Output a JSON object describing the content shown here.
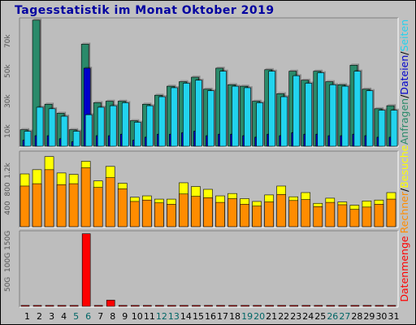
{
  "title": "Tagesstatistik im Monat Oktober 2019",
  "colors": {
    "frame_bg": "#c0c0c0",
    "panel_bg": "#bdbdbd",
    "anfragen": "#2a8a6a",
    "dateien": "#0000cc",
    "seiten": "#22d3ee",
    "besuche": "#ffff00",
    "rechner": "#ff8c00",
    "datenmenge": "#ff0000",
    "weekend_day": "#006666",
    "normal_day": "#000000"
  },
  "chart_data": [
    {
      "type": "bar",
      "panel": "top",
      "yticks": [
        "10k",
        "30k",
        "50k",
        "70k"
      ],
      "ytick_values": [
        10000,
        30000,
        50000,
        70000
      ],
      "ylim": [
        0,
        85000
      ],
      "series": [
        {
          "name": "Anfragen",
          "values": [
            11000,
            84000,
            28000,
            22000,
            11000,
            68000,
            29000,
            30000,
            30000,
            17000,
            28000,
            34000,
            40000,
            43000,
            46000,
            38000,
            52000,
            41000,
            40000,
            30000,
            51000,
            35000,
            50000,
            44000,
            50000,
            43000,
            41000,
            54000,
            38000,
            25000,
            27000
          ]
        },
        {
          "name": "Dateien",
          "values": [
            4000,
            7000,
            7000,
            5000,
            3000,
            52000,
            7000,
            7000,
            8000,
            4000,
            6000,
            8000,
            8000,
            9000,
            10000,
            7000,
            8000,
            8000,
            7000,
            6000,
            8000,
            7000,
            9000,
            8000,
            8000,
            7000,
            7000,
            8000,
            7000,
            6000,
            6000
          ]
        },
        {
          "name": "Seiten",
          "values": [
            10000,
            26000,
            25000,
            20000,
            10000,
            21000,
            26000,
            27000,
            29000,
            16000,
            27000,
            33000,
            39000,
            42000,
            44000,
            37000,
            50000,
            40000,
            39000,
            29000,
            50000,
            33000,
            47000,
            42000,
            49000,
            41000,
            40000,
            50000,
            37000,
            24000,
            24000
          ]
        }
      ]
    },
    {
      "type": "bar",
      "panel": "middle",
      "yticks": [
        "400",
        "800",
        "1.2k"
      ],
      "ytick_values": [
        400,
        800,
        1200
      ],
      "ylim": [
        0,
        1600
      ],
      "series": [
        {
          "name": "Besuche",
          "values": [
            1130,
            1220,
            1500,
            1150,
            1120,
            1400,
            980,
            1290,
            930,
            630,
            660,
            590,
            590,
            940,
            860,
            800,
            660,
            710,
            600,
            540,
            680,
            870,
            640,
            730,
            500,
            610,
            530,
            460,
            550,
            570,
            730
          ]
        },
        {
          "name": "Rechner",
          "values": [
            870,
            920,
            1220,
            900,
            920,
            1260,
            840,
            1050,
            810,
            540,
            570,
            510,
            480,
            700,
            650,
            620,
            520,
            600,
            480,
            440,
            530,
            690,
            560,
            580,
            430,
            520,
            470,
            370,
            420,
            480,
            590
          ]
        }
      ]
    },
    {
      "type": "bar",
      "panel": "bottom",
      "yticks": [
        "50G",
        "100G",
        "150G"
      ],
      "ytick_values": [
        50,
        100,
        150
      ],
      "ylim": [
        0,
        170
      ],
      "series": [
        {
          "name": "Datenmenge",
          "values": [
            2,
            2,
            2,
            2,
            2,
            165,
            2,
            14,
            2,
            2,
            2,
            2,
            2,
            2,
            2,
            2,
            2,
            2,
            2,
            2,
            2,
            2,
            2,
            2,
            2,
            2,
            2,
            2,
            2,
            2,
            2
          ]
        }
      ]
    }
  ],
  "days": [
    "1",
    "2",
    "3",
    "4",
    "5",
    "6",
    "7",
    "8",
    "9",
    "10",
    "11",
    "12",
    "13",
    "14",
    "15",
    "16",
    "17",
    "18",
    "19",
    "20",
    "21",
    "22",
    "23",
    "24",
    "25",
    "26",
    "27",
    "28",
    "29",
    "30",
    "31"
  ],
  "weekend_days": [
    "5",
    "6",
    "12",
    "13",
    "19",
    "20",
    "26",
    "27"
  ],
  "right_legend": {
    "top": [
      {
        "text": "Anfragen",
        "color_key": "anfragen"
      },
      {
        "text": "/",
        "color_key": "normal_day"
      },
      {
        "text": "Dateien",
        "color_key": "dateien"
      },
      {
        "text": "/",
        "color_key": "normal_day"
      },
      {
        "text": "Seiten",
        "color_key": "seiten"
      }
    ],
    "middle": [
      {
        "text": "Rechner",
        "color_key": "rechner"
      },
      {
        "text": "/",
        "color_key": "normal_day"
      },
      {
        "text": "Besuche",
        "color_key": "besuche"
      }
    ],
    "bottom": [
      {
        "text": "Datenmenge",
        "color_key": "datenmenge"
      }
    ]
  }
}
